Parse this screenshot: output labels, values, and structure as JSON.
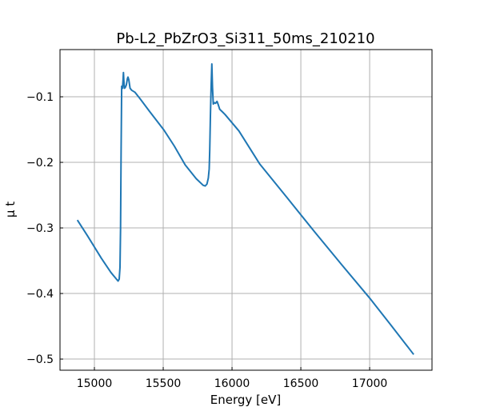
{
  "chart_data": {
    "type": "line",
    "title": "Pb-L2_PbZrO3_Si311_50ms_210210",
    "xlabel": "Energy [eV]",
    "ylabel": "μ t",
    "xlim": [
      14750,
      17453
    ],
    "ylim": [
      -0.517,
      -0.028
    ],
    "xticks": [
      15000,
      15500,
      16000,
      16500,
      17000
    ],
    "xtick_labels": [
      "15000",
      "15500",
      "16000",
      "16500",
      "17000"
    ],
    "yticks": [
      -0.1,
      -0.2,
      -0.3,
      -0.4,
      -0.5
    ],
    "ytick_labels": [
      "−0.1",
      "−0.2",
      "−0.3",
      "−0.4",
      "−0.5"
    ],
    "grid": true,
    "series": [
      {
        "name": "mu_t",
        "color": "#1f77b4",
        "x": [
          14876,
          14950,
          15050,
          15120,
          15160,
          15172,
          15180,
          15186,
          15190,
          15194,
          15198,
          15204,
          15208,
          15211,
          15214,
          15218,
          15224,
          15232,
          15240,
          15244,
          15250,
          15259,
          15270,
          15294,
          15332,
          15400,
          15506,
          15580,
          15660,
          15740,
          15790,
          15805,
          15818,
          15828,
          15834,
          15838,
          15843,
          15848,
          15853,
          15858,
          15864,
          15872,
          15880,
          15891,
          15900,
          15910,
          15930,
          15949,
          16050,
          16200,
          16400,
          16600,
          16800,
          17000,
          17150,
          17320
        ],
        "y": [
          -0.288,
          -0.312,
          -0.346,
          -0.368,
          -0.378,
          -0.381,
          -0.378,
          -0.36,
          -0.3,
          -0.18,
          -0.084,
          -0.087,
          -0.075,
          -0.063,
          -0.075,
          -0.087,
          -0.086,
          -0.082,
          -0.072,
          -0.07,
          -0.074,
          -0.087,
          -0.09,
          -0.093,
          -0.103,
          -0.122,
          -0.151,
          -0.175,
          -0.204,
          -0.225,
          -0.235,
          -0.236,
          -0.233,
          -0.224,
          -0.21,
          -0.18,
          -0.13,
          -0.085,
          -0.05,
          -0.085,
          -0.111,
          -0.109,
          -0.11,
          -0.107,
          -0.112,
          -0.119,
          -0.123,
          -0.127,
          -0.152,
          -0.202,
          -0.254,
          -0.306,
          -0.357,
          -0.407,
          -0.447,
          -0.493
        ]
      }
    ]
  }
}
